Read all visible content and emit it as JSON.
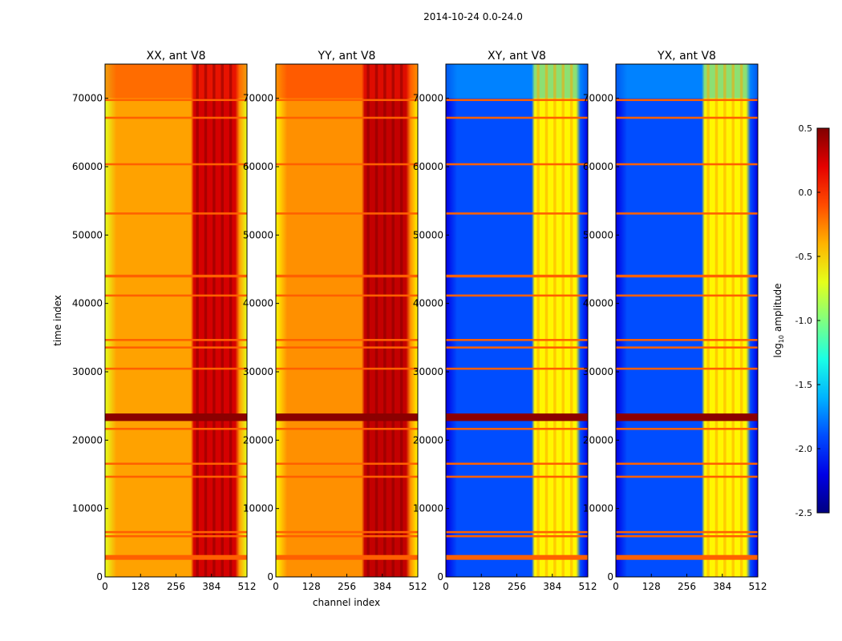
{
  "chart_data": {
    "type": "heatmap",
    "suptitle": "2014-10-24 0.0-24.0",
    "xlabel": "channel index",
    "ylabel": "time index",
    "xlim": [
      0,
      512
    ],
    "ylim": [
      0,
      75000
    ],
    "xticks": [
      "0",
      "128",
      "256",
      "384",
      "512"
    ],
    "yticks": [
      "0",
      "10000",
      "20000",
      "30000",
      "40000",
      "50000",
      "60000",
      "70000"
    ],
    "panels": [
      {
        "id": "xx",
        "title": "XX, ant V8",
        "base_level": -0.35,
        "band_level": 0.25,
        "edge_level": -0.7
      },
      {
        "id": "yy",
        "title": "YY, ant V8",
        "base_level": -0.3,
        "band_level": 0.3,
        "edge_level": -0.6
      },
      {
        "id": "xy",
        "title": "XY, ant V8",
        "base_level": -1.9,
        "band_level": -0.6,
        "edge_level": -2.2
      },
      {
        "id": "yx",
        "title": "YX, ant V8",
        "base_level": -1.9,
        "band_level": -0.6,
        "edge_level": -2.2
      }
    ],
    "colorbar": {
      "label_prefix": "log",
      "label_sub": "10",
      "label_suffix": " amplitude",
      "range": [
        -2.5,
        0.5
      ],
      "ticks": [
        "0.5",
        "0.0",
        "-0.5",
        "-1.0",
        "-1.5",
        "-2.0",
        "-2.5"
      ],
      "colormap": "jet"
    },
    "flagged_time_ranges": [
      [
        2500,
        3200
      ],
      [
        5800,
        6100
      ],
      [
        6400,
        6700
      ],
      [
        14500,
        14800
      ],
      [
        16400,
        16700
      ],
      [
        21500,
        21800
      ],
      [
        22800,
        23900
      ],
      [
        30300,
        30600
      ],
      [
        33400,
        33700
      ],
      [
        34500,
        34800
      ],
      [
        41000,
        41300
      ],
      [
        43800,
        44200
      ],
      [
        53000,
        53300
      ],
      [
        60200,
        60500
      ],
      [
        67000,
        67300
      ],
      [
        69600,
        69900
      ]
    ],
    "bright_band_channels": [
      [
        320,
        470
      ]
    ]
  }
}
